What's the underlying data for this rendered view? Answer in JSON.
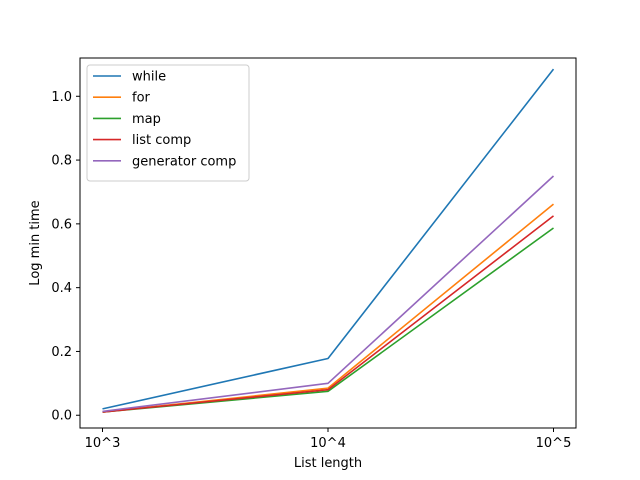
{
  "chart_data": {
    "type": "line",
    "title": "",
    "xlabel": "List length",
    "ylabel": "Log min time",
    "categories": [
      "10^3",
      "10^4",
      "10^5"
    ],
    "ylim": [
      -0.04,
      1.12
    ],
    "yticks": [
      0.0,
      0.2,
      0.4,
      0.6,
      0.8,
      1.0
    ],
    "ytick_labels": [
      "0.0",
      "0.2",
      "0.4",
      "0.6",
      "0.8",
      "1.0"
    ],
    "grid": false,
    "legend_position": "top-left",
    "series": [
      {
        "name": "while",
        "color": "#1f77b4",
        "values": [
          0.02,
          0.178,
          1.085
        ]
      },
      {
        "name": "for",
        "color": "#ff7f0e",
        "values": [
          0.01,
          0.085,
          0.662
        ]
      },
      {
        "name": "map",
        "color": "#2ca02c",
        "values": [
          0.01,
          0.075,
          0.587
        ]
      },
      {
        "name": "list comp",
        "color": "#d62728",
        "values": [
          0.01,
          0.08,
          0.625
        ]
      },
      {
        "name": "generator comp",
        "color": "#9467bd",
        "values": [
          0.012,
          0.1,
          0.75
        ]
      }
    ]
  }
}
